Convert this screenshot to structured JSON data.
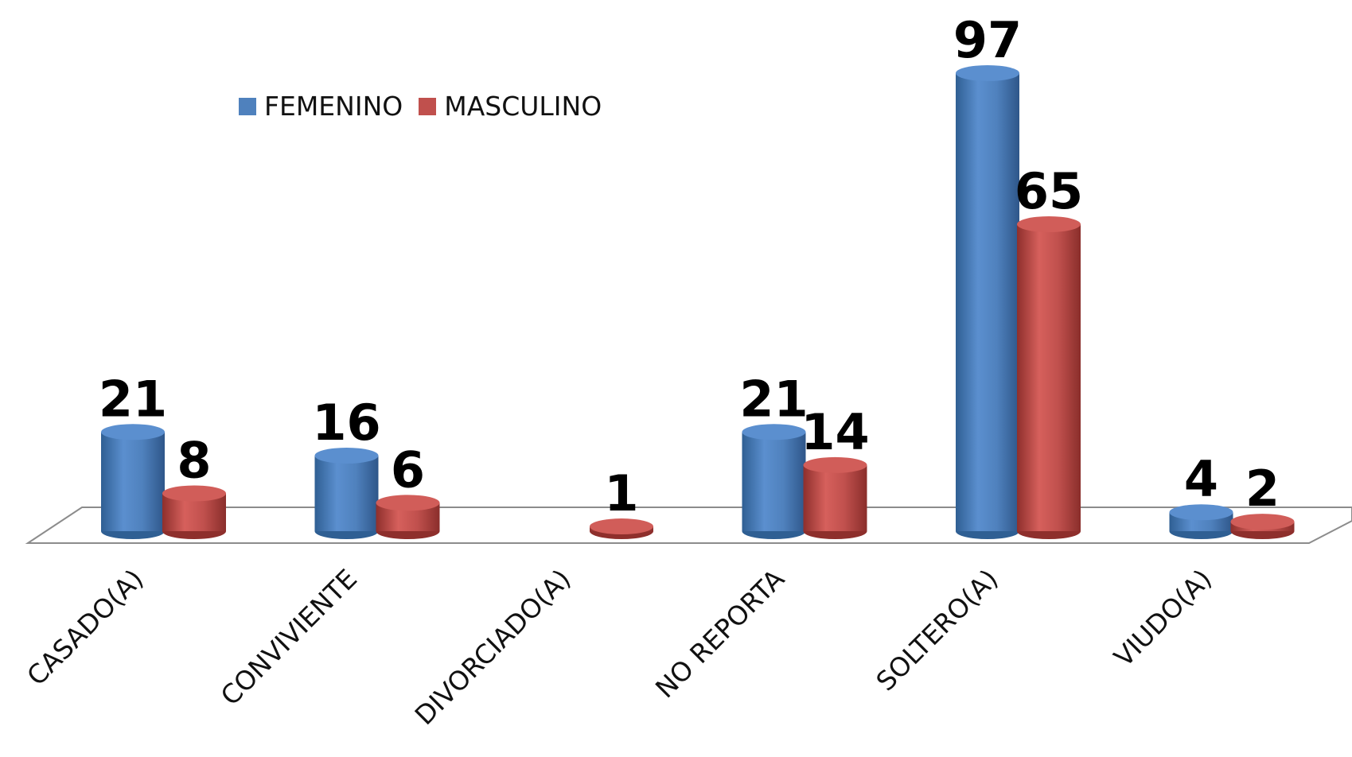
{
  "chart_data": {
    "type": "bar",
    "categories": [
      "CASADO(A)",
      "CONVIVIENTE",
      "DIVORCIADO(A)",
      "NO REPORTA",
      "SOLTERO(A)",
      "VIUDO(A)"
    ],
    "series": [
      {
        "name": "FEMENINO",
        "color": "#4f81bd",
        "values": [
          21,
          16,
          null,
          21,
          97,
          4
        ]
      },
      {
        "name": "MASCULINO",
        "color": "#c0504d",
        "values": [
          8,
          6,
          1,
          14,
          65,
          2
        ]
      }
    ],
    "legend_position": "top-left",
    "bar_shape": "3d-cylinder",
    "data_labels": true,
    "grid": false,
    "ylim": [
      0,
      97
    ]
  }
}
